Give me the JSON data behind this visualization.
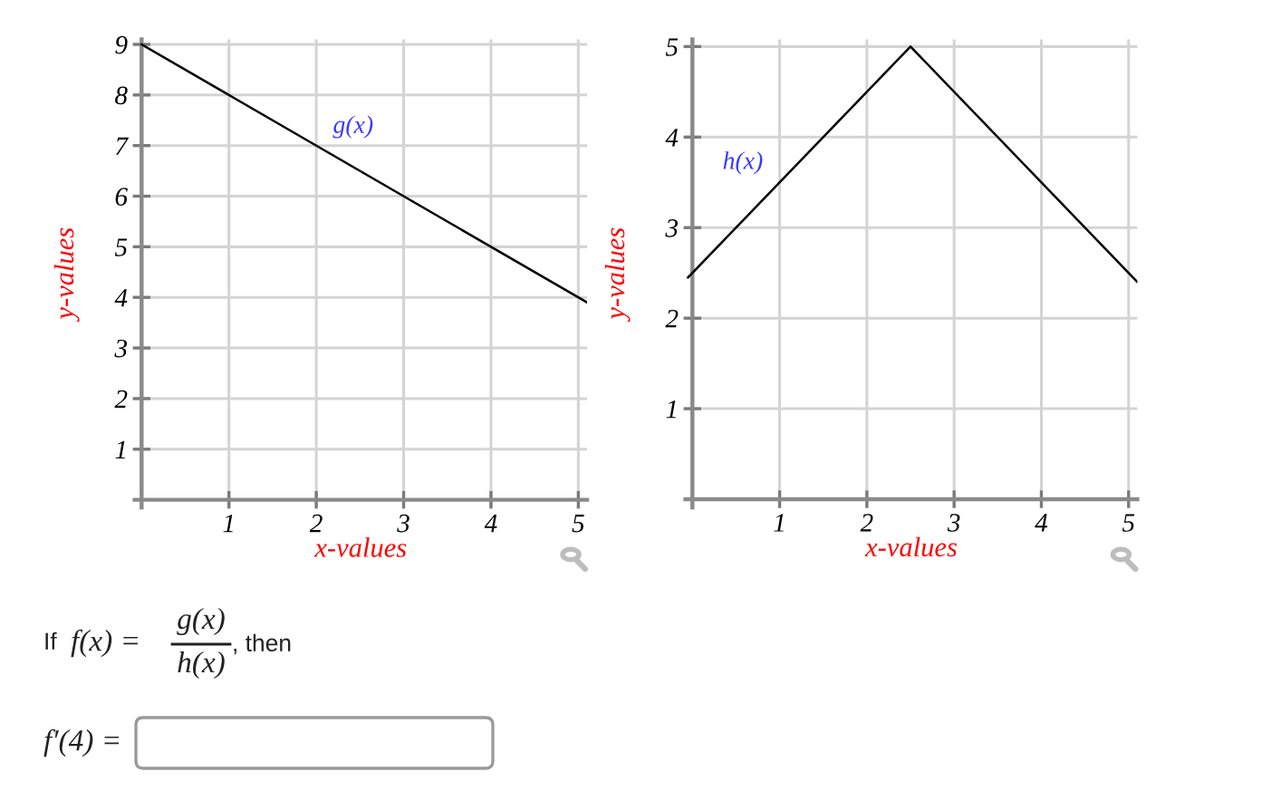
{
  "chart_data": [
    {
      "type": "line",
      "xlabel": "x-values",
      "ylabel": "y-values",
      "xlim": [
        -0.08,
        5.1
      ],
      "ylim": [
        -0.15,
        9.1
      ],
      "xticks": [
        1,
        2,
        3,
        4,
        5
      ],
      "yticks": [
        1,
        2,
        3,
        4,
        5,
        6,
        7,
        8,
        9
      ],
      "grid": true,
      "series": [
        {
          "color": "#000000",
          "x": [
            0,
            5.1
          ],
          "values": [
            9,
            3.9
          ]
        }
      ],
      "annotations": [
        "g(x)"
      ]
    },
    {
      "type": "line",
      "xlabel": "x-values",
      "ylabel": "y-values",
      "xlim": [
        -0.08,
        5.1
      ],
      "ylim": [
        -0.09,
        5.08
      ],
      "xticks": [
        1,
        2,
        3,
        4,
        5
      ],
      "yticks": [
        1,
        2,
        3,
        4,
        5
      ],
      "grid": true,
      "series": [
        {
          "color": "#000000",
          "x": [
            -0.05,
            2.5,
            5.1
          ],
          "values": [
            2.45,
            5,
            2.4
          ]
        }
      ],
      "annotations": [
        "h(x)"
      ]
    },
    {
      "type": "other",
      "annotations": [
        "If",
        "f(x) =",
        "g(x)",
        "h(x)",
        ", then",
        "f′(4) ="
      ]
    }
  ]
}
